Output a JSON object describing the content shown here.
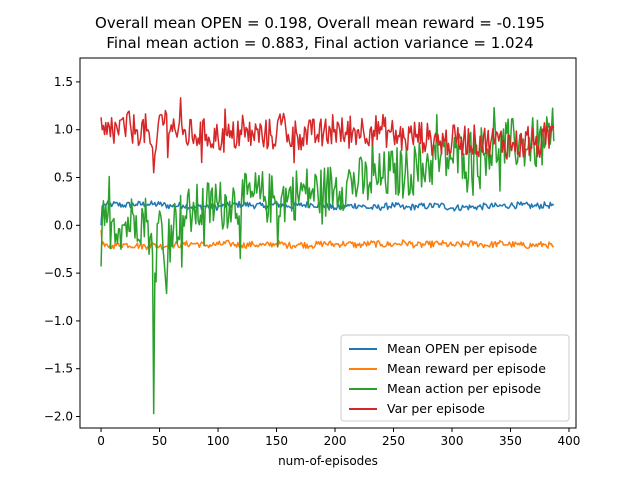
{
  "chart_data": {
    "type": "line",
    "title_lines": [
      "Overall mean OPEN = 0.198, Overall mean reward = -0.195",
      "Final mean action = 0.883, Final action variance = 1.024"
    ],
    "xlabel": "num-of-episodes",
    "ylabel": "",
    "xlim": [
      -18,
      406
    ],
    "ylim": [
      -2.12,
      1.75
    ],
    "xticks": [
      0,
      50,
      100,
      150,
      200,
      250,
      300,
      350,
      400
    ],
    "yticks": [
      -2.0,
      -1.5,
      -1.0,
      -0.5,
      0.0,
      0.5,
      1.0,
      1.5
    ],
    "grid": false,
    "legend_position": "lower right",
    "n_points": 388,
    "series": [
      {
        "name": "Mean OPEN per episode",
        "color": "#1f77b4",
        "anchors_x": [
          0,
          1,
          3,
          10,
          20,
          30,
          40,
          45,
          50,
          60,
          70,
          80,
          90,
          100,
          110,
          120,
          130,
          140,
          150,
          160,
          170,
          180,
          190,
          200,
          210,
          220,
          230,
          240,
          250,
          260,
          270,
          280,
          290,
          300,
          310,
          320,
          330,
          340,
          350,
          360,
          370,
          380,
          387
        ],
        "anchors_y": [
          0.0,
          0.2,
          0.22,
          0.22,
          0.21,
          0.22,
          0.22,
          0.22,
          0.22,
          0.2,
          0.21,
          0.19,
          0.2,
          0.19,
          0.21,
          0.22,
          0.21,
          0.2,
          0.22,
          0.2,
          0.21,
          0.22,
          0.21,
          0.18,
          0.2,
          0.21,
          0.18,
          0.19,
          0.21,
          0.18,
          0.2,
          0.2,
          0.21,
          0.18,
          0.19,
          0.19,
          0.2,
          0.2,
          0.21,
          0.21,
          0.2,
          0.21,
          0.21
        ],
        "noise_amplitude": 0.035
      },
      {
        "name": "Mean reward per episode",
        "color": "#ff7f0e",
        "anchors_x": [
          0,
          1,
          3,
          10,
          20,
          30,
          40,
          45,
          50,
          60,
          70,
          80,
          90,
          100,
          110,
          120,
          130,
          140,
          150,
          160,
          170,
          180,
          190,
          200,
          210,
          220,
          230,
          240,
          250,
          260,
          270,
          280,
          290,
          300,
          310,
          320,
          330,
          340,
          350,
          360,
          370,
          380,
          387
        ],
        "anchors_y": [
          -0.05,
          -0.2,
          -0.22,
          -0.21,
          -0.2,
          -0.21,
          -0.22,
          -0.2,
          -0.22,
          -0.21,
          -0.2,
          -0.19,
          -0.21,
          -0.2,
          -0.19,
          -0.21,
          -0.2,
          -0.21,
          -0.19,
          -0.21,
          -0.2,
          -0.21,
          -0.19,
          -0.2,
          -0.19,
          -0.21,
          -0.19,
          -0.2,
          -0.2,
          -0.18,
          -0.21,
          -0.2,
          -0.19,
          -0.21,
          -0.2,
          -0.19,
          -0.21,
          -0.19,
          -0.2,
          -0.21,
          -0.21,
          -0.2,
          -0.22
        ],
        "noise_amplitude": 0.035
      },
      {
        "name": "Mean action per episode",
        "color": "#2ca02c",
        "anchors_x": [
          0,
          1,
          3,
          10,
          20,
          30,
          40,
          44,
          45,
          46,
          50,
          55,
          60,
          70,
          80,
          90,
          100,
          110,
          120,
          130,
          140,
          150,
          160,
          170,
          180,
          190,
          200,
          210,
          220,
          230,
          240,
          250,
          260,
          270,
          280,
          290,
          300,
          310,
          320,
          330,
          340,
          350,
          360,
          370,
          380,
          387
        ],
        "anchors_y": [
          -0.43,
          0.05,
          0.0,
          0.05,
          0.0,
          0.1,
          0.05,
          -0.3,
          -1.97,
          -0.5,
          0.15,
          -0.55,
          0.0,
          0.1,
          0.15,
          0.2,
          0.2,
          0.25,
          0.25,
          0.3,
          0.3,
          0.25,
          0.3,
          0.35,
          0.35,
          0.35,
          0.4,
          0.45,
          0.45,
          0.45,
          0.5,
          0.55,
          0.55,
          0.6,
          0.65,
          0.7,
          0.7,
          0.75,
          0.75,
          0.8,
          0.8,
          0.85,
          0.85,
          0.85,
          0.85,
          0.88
        ],
        "noise_amplitude": 0.28
      },
      {
        "name": "Var per episode",
        "color": "#d62728",
        "anchors_x": [
          0,
          1,
          3,
          10,
          20,
          30,
          40,
          45,
          50,
          60,
          70,
          80,
          90,
          100,
          110,
          120,
          130,
          140,
          150,
          155,
          160,
          170,
          180,
          190,
          200,
          210,
          220,
          230,
          240,
          250,
          260,
          270,
          280,
          290,
          300,
          310,
          320,
          330,
          340,
          350,
          360,
          370,
          380,
          387
        ],
        "anchors_y": [
          1.13,
          1.0,
          0.95,
          0.98,
          1.02,
          1.0,
          1.0,
          0.55,
          1.15,
          1.05,
          0.95,
          0.95,
          0.95,
          0.92,
          0.92,
          0.95,
          0.95,
          0.95,
          0.95,
          1.1,
          0.95,
          0.95,
          0.95,
          0.95,
          1.0,
          0.95,
          1.0,
          1.0,
          1.0,
          0.95,
          0.9,
          0.95,
          0.9,
          0.88,
          0.88,
          0.9,
          0.88,
          0.88,
          0.88,
          0.85,
          0.85,
          0.85,
          0.85,
          1.02
        ],
        "noise_amplitude": 0.17
      }
    ]
  }
}
